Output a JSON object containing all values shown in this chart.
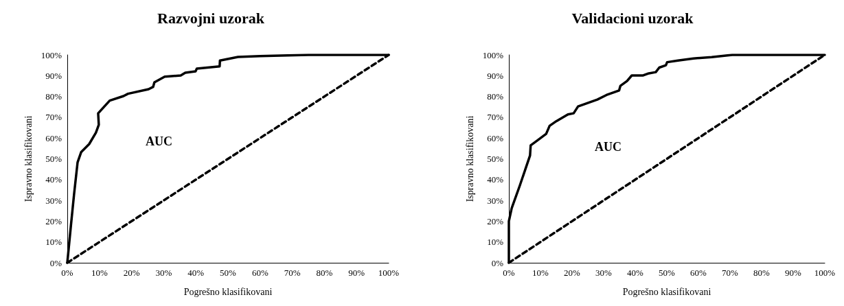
{
  "chart_data": [
    {
      "type": "line",
      "title": "Razvojni uzorak",
      "xlabel": "Pogrešno klasifikovani",
      "ylabel": "Ispravno klasifikovani",
      "annotations": [
        "AUC"
      ],
      "marker": "none",
      "grid": false,
      "xlim": [
        0,
        100
      ],
      "ylim": [
        0,
        100
      ],
      "xticks": [
        {
          "value": 0,
          "label": "0%"
        },
        {
          "value": 10,
          "label": "10%"
        },
        {
          "value": 20,
          "label": "20%"
        },
        {
          "value": 30,
          "label": "30%"
        },
        {
          "value": 40,
          "label": "40%"
        },
        {
          "value": 50,
          "label": "50%"
        },
        {
          "value": 60,
          "label": "60%"
        },
        {
          "value": 70,
          "label": "70%"
        },
        {
          "value": 80,
          "label": "80%"
        },
        {
          "value": 90,
          "label": "90%"
        },
        {
          "value": 100,
          "label": "100%"
        }
      ],
      "yticks": [
        {
          "value": 0,
          "label": "0%"
        },
        {
          "value": 10,
          "label": "10%"
        },
        {
          "value": 20,
          "label": "20%"
        },
        {
          "value": 30,
          "label": "30%"
        },
        {
          "value": 40,
          "label": "40%"
        },
        {
          "value": 50,
          "label": "50%"
        },
        {
          "value": 60,
          "label": "60%"
        },
        {
          "value": 70,
          "label": "70%"
        },
        {
          "value": 80,
          "label": "80%"
        },
        {
          "value": 90,
          "label": "90%"
        },
        {
          "value": 100,
          "label": "100%"
        }
      ],
      "series": [
        {
          "color": "#000000",
          "line_style": "solid",
          "x": [
            0,
            1.1,
            2.1,
            3.2,
            4.3,
            6.8,
            8.9,
            9.8,
            9.6,
            13.2,
            17.5,
            18.9,
            25.3,
            26.7,
            27.1,
            30.3,
            35.3,
            36.7,
            39.9,
            40.3,
            47.4,
            47.5,
            53.1,
            60,
            75,
            100
          ],
          "values": [
            0,
            17.5,
            32.9,
            48.3,
            53.2,
            57.1,
            62.6,
            66.4,
            71.9,
            78,
            80.2,
            81.3,
            83.5,
            84.6,
            86.8,
            89.5,
            90.1,
            91.4,
            92.1,
            93.4,
            94.5,
            97.3,
            99,
            99.4,
            100,
            100
          ]
        },
        {
          "color": "#000000",
          "line_style": "dashed",
          "x": [
            0,
            100
          ],
          "values": [
            0,
            100
          ]
        }
      ]
    },
    {
      "type": "line",
      "title": "Validacioni uzorak",
      "xlabel": "Pogrešno klasifikovani",
      "ylabel": "Ispravno klasifikovani",
      "annotations": [
        "AUC"
      ],
      "marker": "none",
      "grid": false,
      "xlim": [
        0,
        100
      ],
      "ylim": [
        0,
        100
      ],
      "xticks": [
        {
          "value": 0,
          "label": "0%"
        },
        {
          "value": 10,
          "label": "10%"
        },
        {
          "value": 20,
          "label": "20%"
        },
        {
          "value": 30,
          "label": "30%"
        },
        {
          "value": 40,
          "label": "40%"
        },
        {
          "value": 50,
          "label": "50%"
        },
        {
          "value": 60,
          "label": "60%"
        },
        {
          "value": 70,
          "label": "70%"
        },
        {
          "value": 80,
          "label": "80%"
        },
        {
          "value": 90,
          "label": "90%"
        },
        {
          "value": 100,
          "label": "100%"
        }
      ],
      "yticks": [
        {
          "value": 0,
          "label": "0%"
        },
        {
          "value": 10,
          "label": "10%"
        },
        {
          "value": 20,
          "label": "20%"
        },
        {
          "value": 30,
          "label": "30%"
        },
        {
          "value": 40,
          "label": "40%"
        },
        {
          "value": 50,
          "label": "50%"
        },
        {
          "value": 60,
          "label": "60%"
        },
        {
          "value": 70,
          "label": "70%"
        },
        {
          "value": 80,
          "label": "80%"
        },
        {
          "value": 90,
          "label": "90%"
        },
        {
          "value": 100,
          "label": "100%"
        }
      ],
      "series": [
        {
          "color": "#000000",
          "line_style": "solid",
          "x": [
            0,
            0,
            0.9,
            3.5,
            6.7,
            6.9,
            8.9,
            11.8,
            12.9,
            15,
            18.7,
            20.5,
            21.9,
            28,
            30.9,
            34.9,
            35.3,
            37.4,
            38.9,
            42.5,
            44,
            46.5,
            47.6,
            49.7,
            50.1,
            53.5,
            58.4,
            64.2,
            70.7,
            100
          ],
          "values": [
            0,
            20,
            26.3,
            37.3,
            51.6,
            56.5,
            58.7,
            62,
            65.9,
            68.1,
            71.4,
            71.9,
            75.2,
            78.5,
            80.7,
            82.9,
            85.1,
            87.4,
            90.1,
            90.1,
            91,
            91.7,
            93.9,
            95,
            96.5,
            97.3,
            98.3,
            98.9,
            100,
            100
          ]
        },
        {
          "color": "#000000",
          "line_style": "dashed",
          "x": [
            0,
            100
          ],
          "values": [
            0,
            100
          ]
        }
      ]
    }
  ]
}
